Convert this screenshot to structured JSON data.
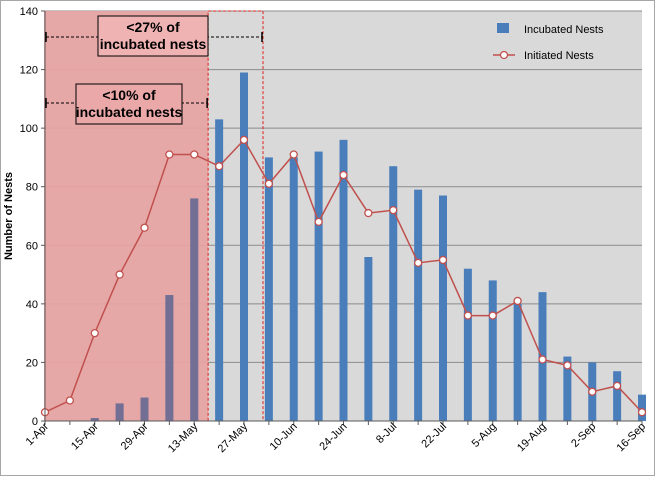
{
  "chart_data": {
    "type": "bar",
    "title": "",
    "xlabel": "",
    "ylabel": "Number of Nests",
    "ylim": [
      0,
      140
    ],
    "yticks": [
      0,
      20,
      40,
      60,
      80,
      100,
      120,
      140
    ],
    "grid": true,
    "legend_position": "top-right",
    "x_tick_labels": [
      "1-Apr",
      "15-Apr",
      "29-Apr",
      "13-May",
      "27-May",
      "10-Jun",
      "24-Jun",
      "8-Jul",
      "22-Jul",
      "5-Aug",
      "19-Aug",
      "2-Sep",
      "16-Sep"
    ],
    "x_dates": [
      "1-Apr",
      "8-Apr",
      "15-Apr",
      "22-Apr",
      "29-Apr",
      "6-May",
      "13-May",
      "20-May",
      "27-May",
      "3-Jun",
      "10-Jun",
      "17-Jun",
      "24-Jun",
      "1-Jul",
      "8-Jul",
      "15-Jul",
      "22-Jul",
      "29-Jul",
      "5-Aug",
      "12-Aug",
      "19-Aug",
      "26-Aug",
      "2-Sep",
      "9-Sep",
      "16-Sep"
    ],
    "series": [
      {
        "name": "Incubated Nests",
        "type": "bar",
        "color": "#4a7ebb",
        "values": [
          0,
          0,
          1,
          6,
          8,
          43,
          76,
          103,
          119,
          90,
          90,
          92,
          96,
          56,
          87,
          79,
          77,
          52,
          48,
          40,
          44,
          22,
          20,
          17,
          9
        ]
      },
      {
        "name": "Initiated Nests",
        "type": "line",
        "color": "#c0504d",
        "values": [
          3,
          7,
          30,
          50,
          66,
          91,
          91,
          87,
          96,
          81,
          91,
          68,
          84,
          71,
          72,
          54,
          55,
          36,
          36,
          41,
          21,
          19,
          10,
          12,
          3
        ]
      }
    ],
    "annotations": [
      {
        "label_lines": [
          "<27% of",
          "incubated nests"
        ],
        "from_date": "1-Apr",
        "to_date": "27-May"
      },
      {
        "label_lines": [
          "<10% of",
          "incubated nests"
        ],
        "from_date": "1-Apr",
        "to_date": "20-May"
      }
    ],
    "shaded_region": {
      "from_date": "1-Apr",
      "to_date": "20-May",
      "color": "#e7a3a3"
    },
    "highlight_region": {
      "from_date": "20-May",
      "to_date": "27-May"
    },
    "plot_background": "#d9d9d9"
  }
}
